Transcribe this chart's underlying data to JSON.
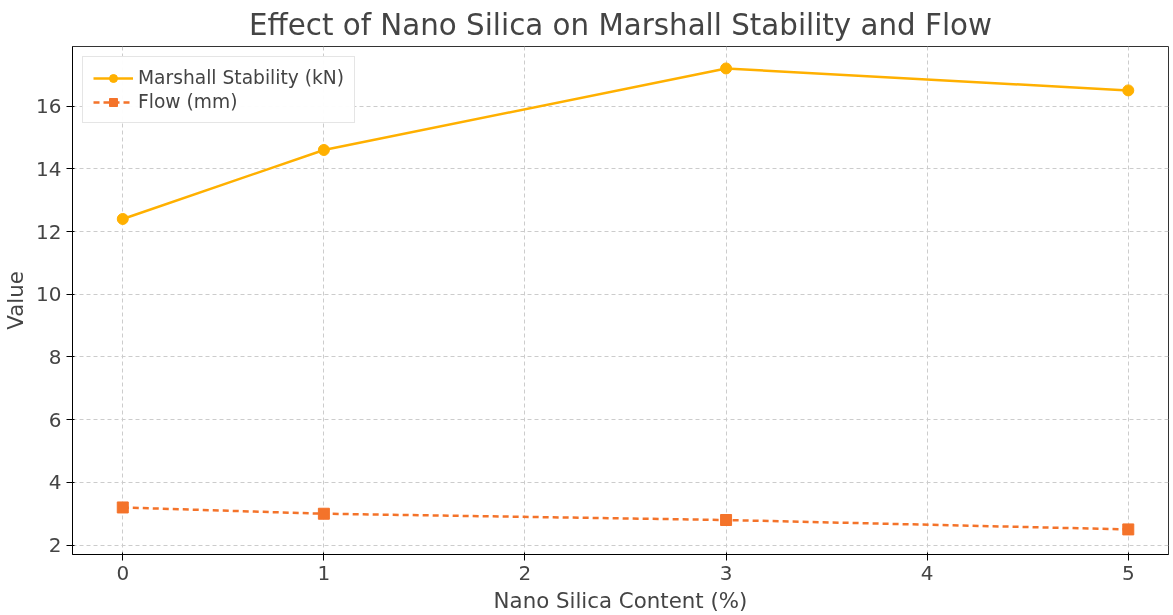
{
  "chart_data": {
    "type": "line",
    "title": "Effect of Nano Silica on Marshall Stability and Flow",
    "xlabel": "Nano Silica Content (%)",
    "ylabel": "Value",
    "x": [
      0,
      1,
      3,
      5
    ],
    "series": [
      {
        "name": "Marshall Stability (kN)",
        "color": "#ffb000",
        "values": [
          12.4,
          14.6,
          17.2,
          16.5
        ],
        "marker": "circle",
        "line_style": "solid"
      },
      {
        "name": "Flow (mm)",
        "color": "#f4732a",
        "values": [
          3.2,
          3.0,
          2.8,
          2.5
        ],
        "marker": "square",
        "line_style": "dashed"
      }
    ],
    "xlim": [
      -0.25,
      5.2
    ],
    "ylim": [
      1.7,
      17.9
    ],
    "xticks": [
      0,
      1,
      2,
      3,
      4,
      5
    ],
    "yticks": [
      2,
      4,
      6,
      8,
      10,
      12,
      14,
      16
    ],
    "grid": true,
    "legend": "top left"
  }
}
